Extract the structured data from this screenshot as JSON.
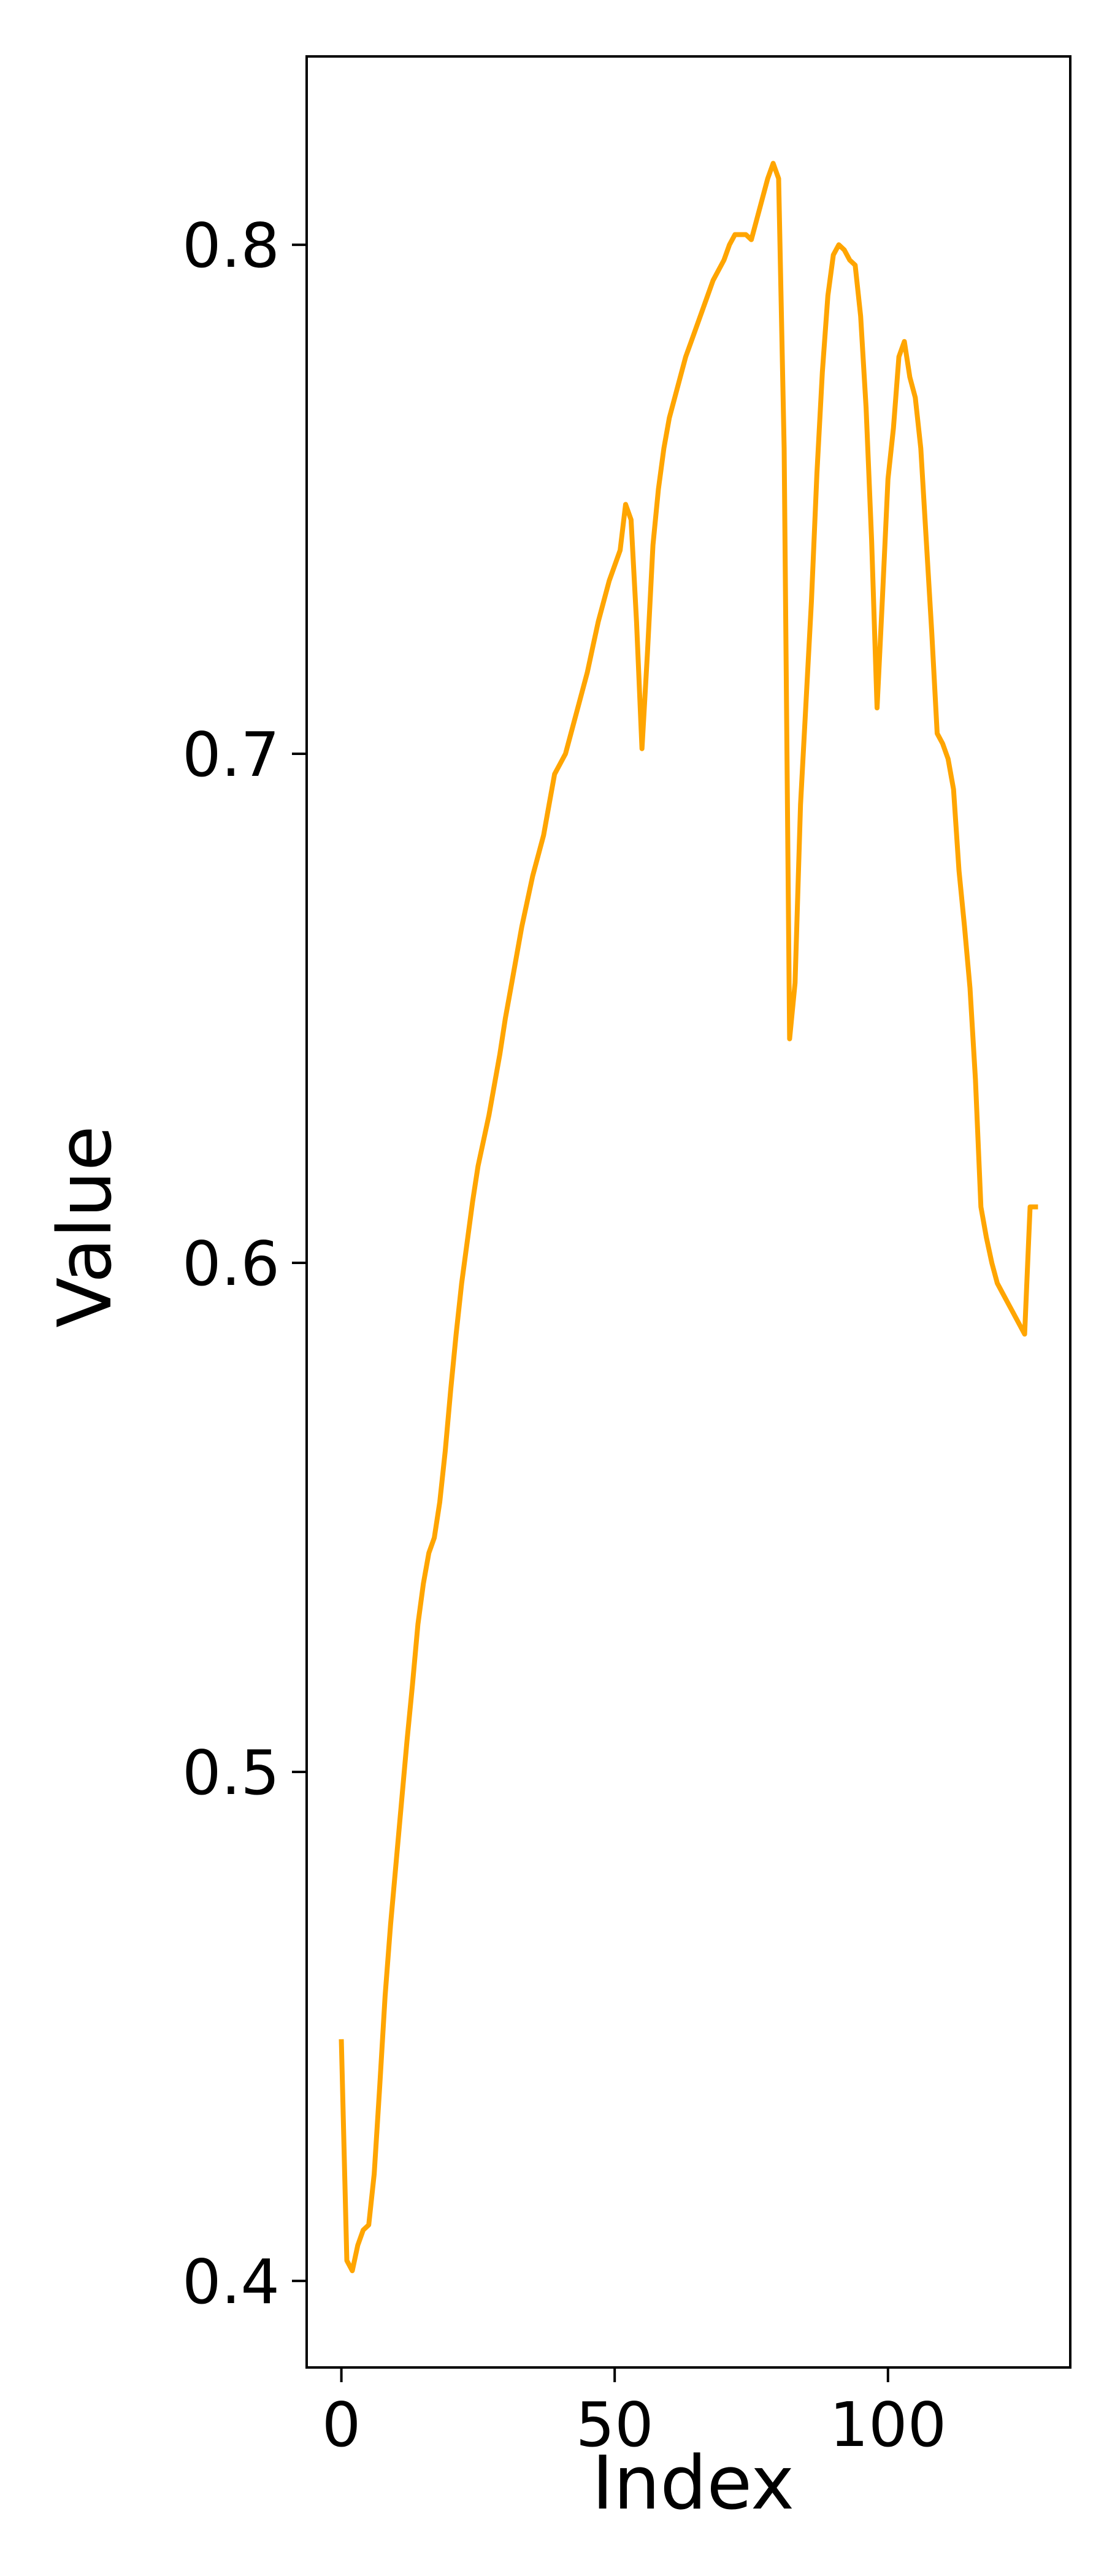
{
  "chart_data": {
    "type": "line",
    "title": "",
    "xlabel": "Index",
    "ylabel": "Value",
    "xlim": [
      -6.35,
      133.35
    ],
    "ylim": [
      0.383,
      0.837
    ],
    "xticks": [
      0,
      50,
      100
    ],
    "xtick_labels": [
      "0",
      "50",
      "100"
    ],
    "yticks": [
      0.4,
      0.5,
      0.6,
      0.7,
      0.8
    ],
    "ytick_labels": [
      "0.4",
      "0.5",
      "0.6",
      "0.7",
      "0.8"
    ],
    "grid": false,
    "legend": false,
    "colors": {
      "line": "#ffa500",
      "axes": "#000000",
      "background": "#ffffff"
    },
    "series": [
      {
        "x": [
          0,
          1,
          2,
          3,
          4,
          5,
          6,
          7,
          8,
          9,
          10,
          11,
          12,
          13,
          14,
          15,
          16,
          17,
          18,
          19,
          20,
          21,
          22,
          23,
          24,
          25,
          26,
          27,
          28,
          29,
          30,
          31,
          32,
          33,
          34,
          35,
          36,
          37,
          38,
          39,
          40,
          41,
          42,
          43,
          44,
          45,
          46,
          47,
          48,
          49,
          50,
          51,
          52,
          53,
          54,
          55,
          56,
          57,
          58,
          59,
          60,
          61,
          62,
          63,
          64,
          65,
          66,
          67,
          68,
          69,
          70,
          71,
          72,
          73,
          74,
          75,
          76,
          77,
          78,
          79,
          80,
          81,
          82,
          83,
          84,
          85,
          86,
          87,
          88,
          89,
          90,
          91,
          92,
          93,
          94,
          95,
          96,
          97,
          98,
          99,
          100,
          101,
          102,
          103,
          104,
          105,
          106,
          107,
          108,
          109,
          110,
          111,
          112,
          113,
          114,
          115,
          116,
          117,
          118,
          119,
          120,
          121,
          122,
          123,
          124,
          125,
          126,
          127
        ],
        "values": [
          0.447,
          0.404,
          0.402,
          0.407,
          0.41,
          0.411,
          0.421,
          0.438,
          0.456,
          0.47,
          0.482,
          0.494,
          0.506,
          0.517,
          0.529,
          0.537,
          0.543,
          0.546,
          0.553,
          0.563,
          0.575,
          0.586,
          0.596,
          0.604,
          0.612,
          0.619,
          0.624,
          0.629,
          0.635,
          0.641,
          0.648,
          0.654,
          0.66,
          0.666,
          0.671,
          0.676,
          0.68,
          0.684,
          0.69,
          0.696,
          0.698,
          0.7,
          0.704,
          0.708,
          0.712,
          0.716,
          0.721,
          0.726,
          0.73,
          0.734,
          0.737,
          0.74,
          0.749,
          0.746,
          0.726,
          0.701,
          0.72,
          0.741,
          0.752,
          0.76,
          0.766,
          0.77,
          0.774,
          0.778,
          0.781,
          0.784,
          0.787,
          0.79,
          0.793,
          0.795,
          0.797,
          0.8,
          0.802,
          0.802,
          0.802,
          0.801,
          0.805,
          0.809,
          0.813,
          0.816,
          0.813,
          0.76,
          0.644,
          0.655,
          0.69,
          0.71,
          0.73,
          0.755,
          0.775,
          0.79,
          0.798,
          0.8,
          0.799,
          0.797,
          0.796,
          0.786,
          0.768,
          0.742,
          0.709,
          0.731,
          0.754,
          0.764,
          0.778,
          0.781,
          0.774,
          0.77,
          0.76,
          0.742,
          0.724,
          0.704,
          0.702,
          0.699,
          0.693,
          0.677,
          0.666,
          0.654,
          0.636,
          0.611,
          0.605,
          0.6,
          0.596,
          0.594,
          0.592,
          0.59,
          0.588,
          0.586,
          0.611,
          0.611
        ]
      }
    ]
  }
}
